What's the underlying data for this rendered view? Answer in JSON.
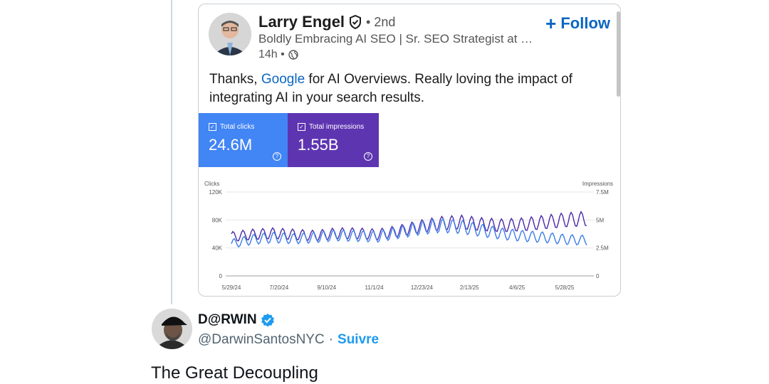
{
  "linkedin_post": {
    "author_name": "Larry Engel",
    "degree": "• 2nd",
    "headline": "Boldly Embracing AI SEO | Sr. SEO Strategist at …",
    "time": "14h •",
    "follow_label": "Follow",
    "text_before": "Thanks, ",
    "text_link": "Google",
    "text_after": " for AI Overviews. Really loving the impact of integrating AI in your search results.",
    "metrics": {
      "clicks_label": "Total clicks",
      "clicks_value": "24.6M",
      "impressions_label": "Total impressions",
      "impressions_value": "1.55B",
      "clicks_color": "#4285f4",
      "impressions_color": "#5e35b1"
    }
  },
  "chart_data": {
    "type": "line",
    "y_left_label": "Clicks",
    "y_right_label": "Impressions",
    "y_left_ticks": [
      "120K",
      "80K",
      "40K",
      "0"
    ],
    "y_right_ticks": [
      "7.5M",
      "5M",
      "2.5M",
      "0"
    ],
    "ylim_left": [
      0,
      120000
    ],
    "ylim_right": [
      0,
      7500000
    ],
    "x_tick_labels": [
      "5/29/24",
      "7/20/24",
      "9/10/24",
      "11/1/24",
      "12/23/24",
      "2/13/25",
      "4/6/25",
      "5/28/25"
    ],
    "series": [
      {
        "name": "Clicks",
        "color": "#3d7ce8",
        "values": [
          46000,
          52000,
          55000,
          53000,
          55000,
          58000,
          57000,
          56000,
          62000,
          68000,
          72000,
          70000,
          65000,
          60000,
          57000,
          55000,
          52000,
          51000
        ]
      },
      {
        "name": "Impressions",
        "color": "#4a2aa8",
        "values": [
          3500000,
          3700000,
          3800000,
          3700000,
          3600000,
          3800000,
          3800000,
          3700000,
          4000000,
          4400000,
          4700000,
          4800000,
          4600000,
          4500000,
          4600000,
          4800000,
          5000000,
          5100000
        ]
      }
    ],
    "grid": true
  },
  "tweet": {
    "display_name": "D@RWIN",
    "handle": "@DarwinSantosNYC",
    "separator": "·",
    "follow_label": "Suivre",
    "text": "The Great Decoupling"
  },
  "icons": {
    "verify": "shield-check-icon",
    "globe": "globe-icon",
    "badge": "verified-badge-icon"
  }
}
